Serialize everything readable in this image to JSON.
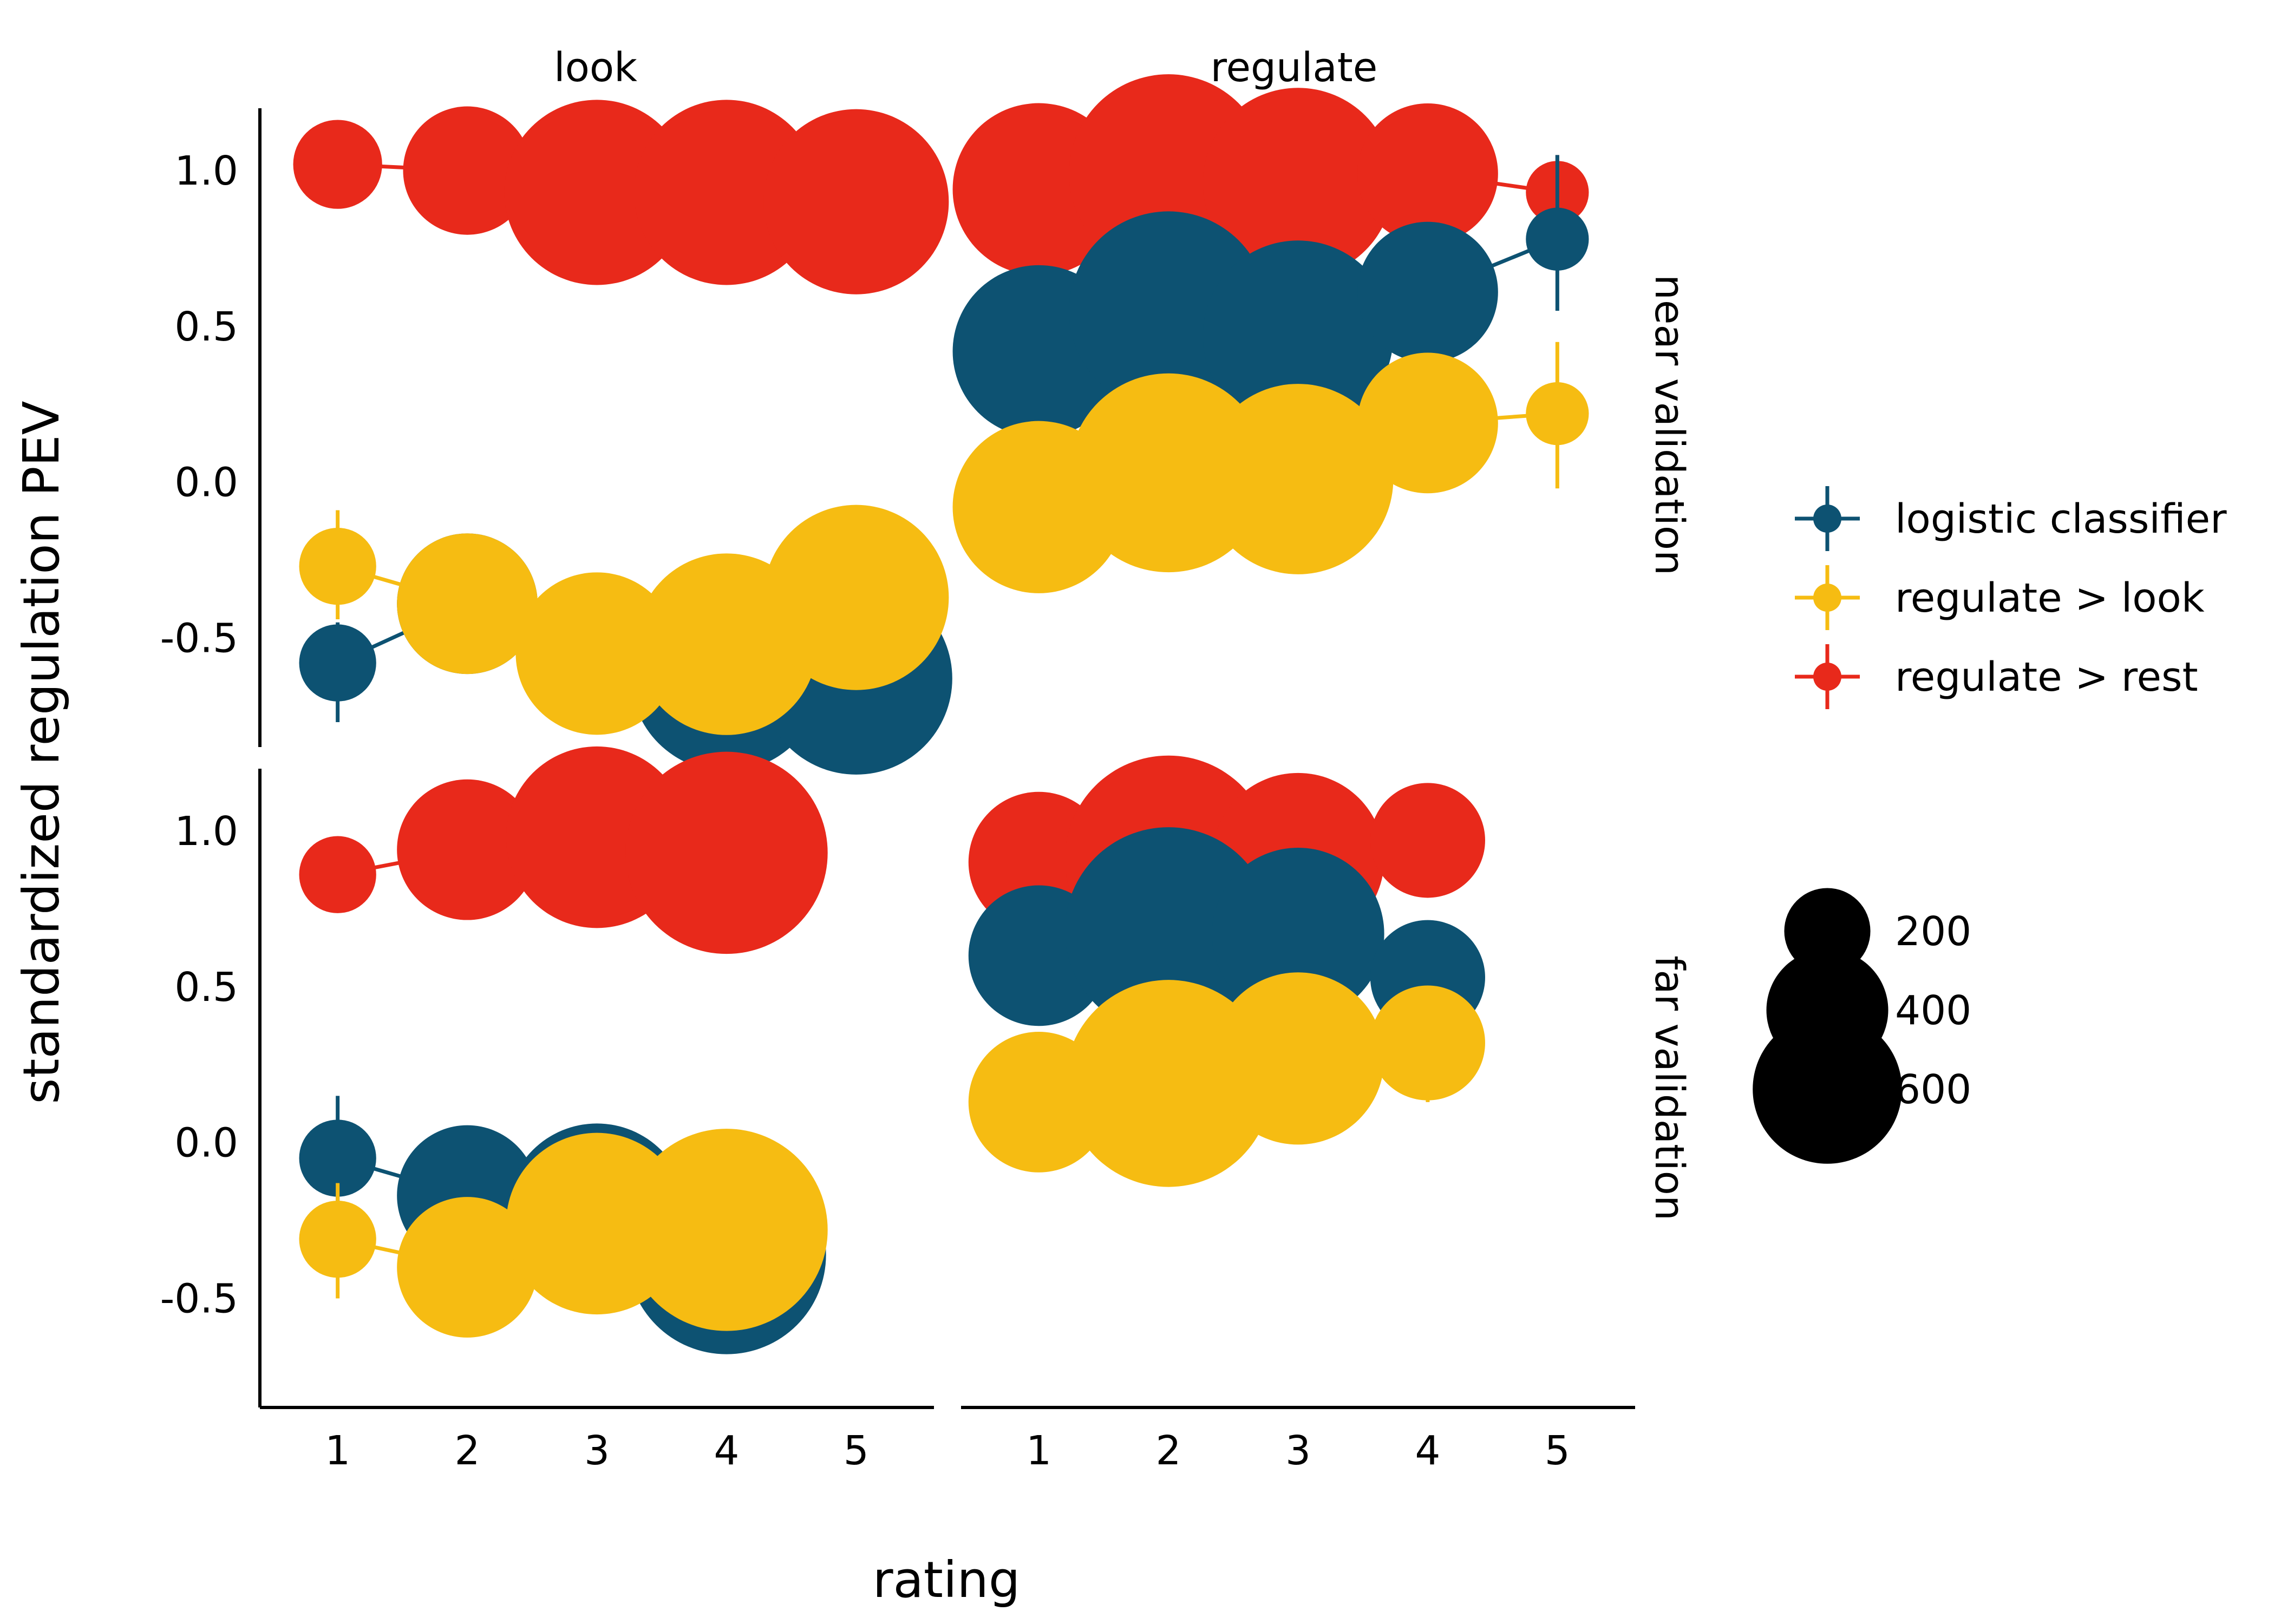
{
  "chart_data": {
    "type": "scatter",
    "subtype": "faceted line chart with error bars and size-scaled points",
    "xlabel": "rating",
    "ylabel": "standardized regulation PEV",
    "column_facets": [
      "look",
      "regulate"
    ],
    "row_facets": [
      "near validation",
      "far validation"
    ],
    "x_ticks": [
      "1",
      "2",
      "3",
      "4",
      "5"
    ],
    "y_ticks": [
      "1.0",
      "0.5",
      "0.0",
      "-0.5"
    ],
    "ylim": [
      -0.85,
      1.2
    ],
    "xlim": [
      0.4,
      5.6
    ],
    "grid": false,
    "legend_position": "right",
    "colors": {
      "logistic classifier": "#0d5272",
      "regulate > look": "#f6bc12",
      "regulate > rest": "#e8291b"
    },
    "size_legend": {
      "values": [
        "200",
        "400",
        "600"
      ],
      "sizes": [
        200,
        400,
        600
      ]
    },
    "panels": [
      {
        "column": "look",
        "row": "near validation",
        "series": [
          {
            "name": "logistic classifier",
            "x": [
              1,
              2,
              3,
              4,
              5
            ],
            "y": [
              -0.58,
              -0.39,
              -0.54,
              -0.62,
              -0.63
            ],
            "lo": [
              -0.77,
              -0.47,
              -0.58,
              -0.66,
              -0.67
            ],
            "hi": [
              -0.45,
              -0.32,
              -0.5,
              -0.58,
              -0.6
            ],
            "n": [
              90,
              300,
              360,
              560,
              560
            ]
          },
          {
            "name": "regulate > look",
            "x": [
              1,
              2,
              3,
              4,
              5
            ],
            "y": [
              -0.27,
              -0.39,
              -0.55,
              -0.52,
              -0.37
            ],
            "lo": [
              -0.44,
              -0.51,
              -0.64,
              -0.6,
              -0.44
            ],
            "hi": [
              -0.09,
              -0.27,
              -0.47,
              -0.45,
              -0.28
            ],
            "n": [
              90,
              300,
              400,
              500,
              520
            ]
          },
          {
            "name": "regulate > rest",
            "x": [
              1,
              2,
              3,
              4,
              5
            ],
            "y": [
              1.02,
              1.0,
              0.93,
              0.93,
              0.9
            ],
            "lo": [
              0.95,
              0.97,
              0.89,
              0.9,
              0.87
            ],
            "hi": [
              1.08,
              1.03,
              0.96,
              0.96,
              0.93
            ],
            "n": [
              120,
              250,
              520,
              520,
              520
            ]
          }
        ]
      },
      {
        "column": "regulate",
        "row": "near validation",
        "series": [
          {
            "name": "logistic classifier",
            "x": [
              1,
              2,
              3,
              4,
              5
            ],
            "y": [
              0.42,
              0.55,
              0.47,
              0.61,
              0.78
            ],
            "lo": [
              0.34,
              0.47,
              0.4,
              0.47,
              0.55
            ],
            "hi": [
              0.5,
              0.63,
              0.55,
              0.73,
              1.05
            ],
            "n": [
              450,
              600,
              550,
              300,
              60
            ]
          },
          {
            "name": "regulate > look",
            "x": [
              1,
              2,
              3,
              4,
              5
            ],
            "y": [
              -0.08,
              0.03,
              0.01,
              0.19,
              0.22
            ],
            "lo": [
              -0.17,
              -0.05,
              -0.07,
              0.03,
              -0.02
            ],
            "hi": [
              0.02,
              0.12,
              0.08,
              0.33,
              0.45
            ],
            "n": [
              450,
              600,
              550,
              300,
              60
            ]
          },
          {
            "name": "regulate > rest",
            "x": [
              1,
              2,
              3,
              4,
              5
            ],
            "y": [
              0.94,
              0.99,
              0.96,
              0.99,
              0.93
            ],
            "lo": [
              0.9,
              0.95,
              0.92,
              0.95,
              0.84
            ],
            "hi": [
              0.98,
              1.04,
              1.0,
              1.03,
              1.05
            ],
            "n": [
              450,
              600,
              550,
              300,
              60
            ]
          }
        ]
      },
      {
        "column": "look",
        "row": "far validation",
        "series": [
          {
            "name": "logistic classifier",
            "x": [
              1,
              2,
              3,
              4
            ],
            "y": [
              -0.05,
              -0.17,
              -0.23,
              -0.36
            ],
            "lo": [
              -0.26,
              -0.28,
              -0.34,
              -0.42
            ],
            "hi": [
              0.15,
              -0.04,
              -0.12,
              -0.3
            ],
            "n": [
              90,
              300,
              500,
              600
            ]
          },
          {
            "name": "regulate > look",
            "x": [
              1,
              2,
              3,
              4
            ],
            "y": [
              -0.31,
              -0.4,
              -0.26,
              -0.28
            ],
            "lo": [
              -0.5,
              -0.54,
              -0.35,
              -0.34
            ],
            "hi": [
              -0.13,
              -0.25,
              -0.17,
              -0.22
            ],
            "n": [
              90,
              300,
              500,
              620
            ]
          },
          {
            "name": "regulate > rest",
            "x": [
              1,
              2,
              3,
              4
            ],
            "y": [
              0.86,
              0.94,
              0.98,
              0.93
            ],
            "lo": [
              0.77,
              0.91,
              0.94,
              0.89
            ],
            "hi": [
              0.95,
              0.97,
              1.02,
              0.97
            ],
            "n": [
              90,
              300,
              500,
              620
            ]
          }
        ]
      },
      {
        "column": "regulate",
        "row": "far validation",
        "series": [
          {
            "name": "logistic classifier",
            "x": [
              1,
              2,
              3,
              4
            ],
            "y": [
              0.6,
              0.68,
              0.67,
              0.53
            ],
            "lo": [
              0.48,
              0.63,
              0.58,
              0.36
            ],
            "hi": [
              0.72,
              0.74,
              0.76,
              0.7
            ],
            "n": [
              300,
              650,
              450,
              200
            ]
          },
          {
            "name": "regulate > look",
            "x": [
              1,
              2,
              3,
              4
            ],
            "y": [
              0.13,
              0.19,
              0.27,
              0.32
            ],
            "lo": [
              0.02,
              0.13,
              0.19,
              0.13
            ],
            "hi": [
              0.25,
              0.25,
              0.36,
              0.5
            ],
            "n": [
              300,
              650,
              450,
              200
            ]
          },
          {
            "name": "regulate > rest",
            "x": [
              1,
              2,
              3,
              4
            ],
            "y": [
              0.9,
              0.91,
              0.91,
              0.97
            ],
            "lo": [
              0.87,
              0.87,
              0.87,
              0.91
            ],
            "hi": [
              0.93,
              0.95,
              0.95,
              1.03
            ],
            "n": [
              300,
              650,
              450,
              200
            ]
          }
        ]
      }
    ]
  }
}
